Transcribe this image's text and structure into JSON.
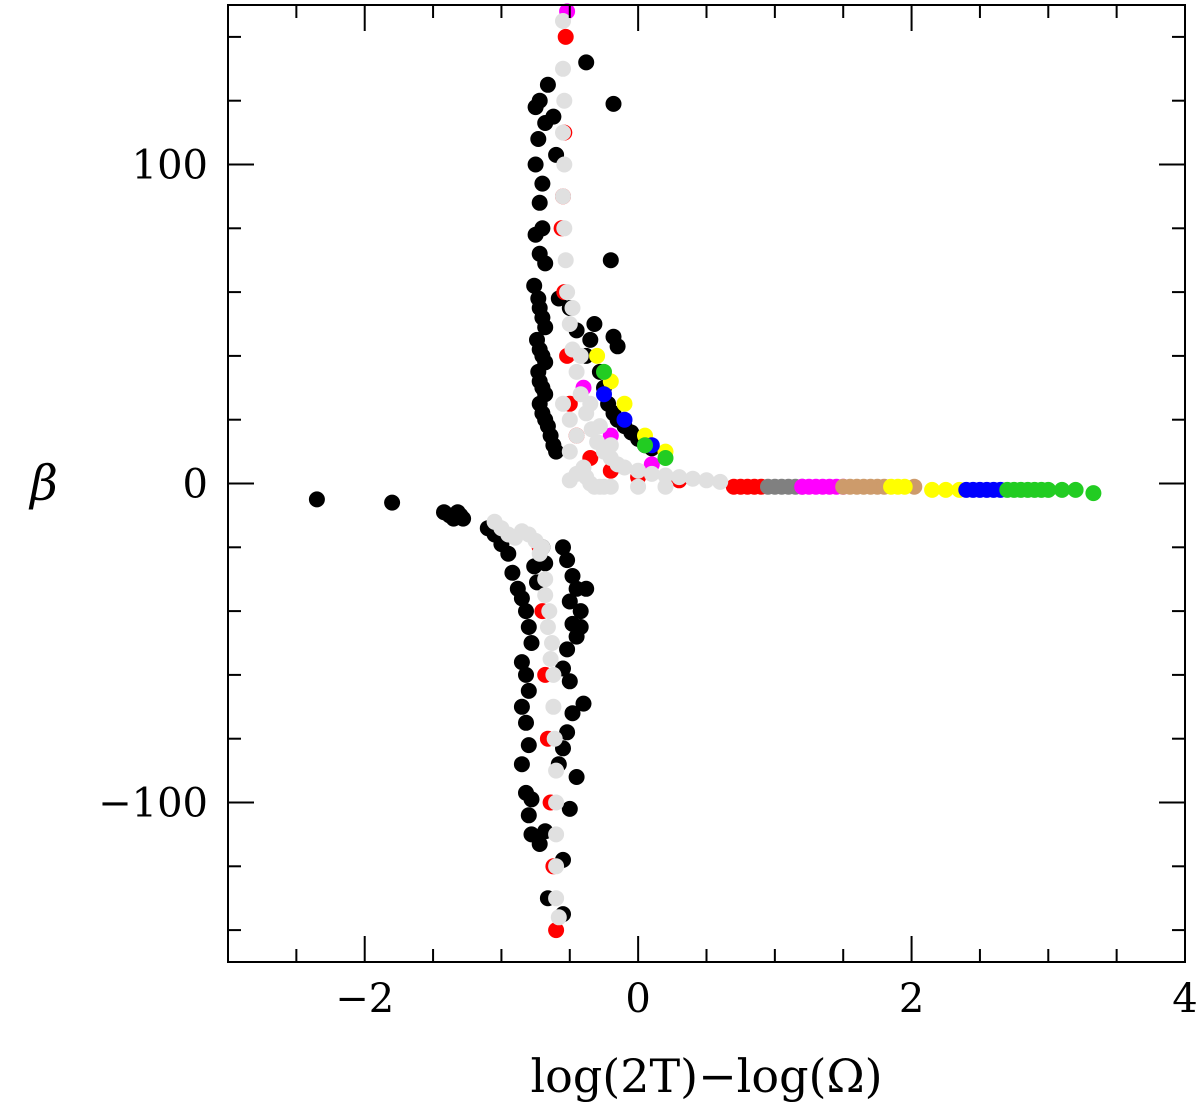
{
  "chart_data": {
    "type": "scatter",
    "title": "",
    "xlabel": "log(2T)−log(Ω)",
    "ylabel": "β",
    "xlim": [
      -3.0,
      4.0
    ],
    "ylim": [
      -150,
      150
    ],
    "xticks": [
      -2,
      0,
      2,
      4
    ],
    "xtick_labels": [
      "−2",
      "0",
      "2",
      "4"
    ],
    "yticks": [
      -100,
      0,
      100
    ],
    "ytick_labels": [
      "−100",
      "0",
      "100"
    ],
    "x_minor_step": 0.5,
    "y_minor_step": 20,
    "series": [
      {
        "name": "black",
        "color": "#000000",
        "points": [
          [
            -2.35,
            -5
          ],
          [
            -1.8,
            -6
          ],
          [
            -1.42,
            -9
          ],
          [
            -1.38,
            -10
          ],
          [
            -1.35,
            -11
          ],
          [
            -1.32,
            -9
          ],
          [
            -1.3,
            -10
          ],
          [
            -1.28,
            -11
          ],
          [
            -1.1,
            -14
          ],
          [
            -1.05,
            -16
          ],
          [
            -1.0,
            -19
          ],
          [
            -0.95,
            -22
          ],
          [
            -0.92,
            -28
          ],
          [
            -0.88,
            -33
          ],
          [
            -0.85,
            -36
          ],
          [
            -0.82,
            -40
          ],
          [
            -0.8,
            -45
          ],
          [
            -0.78,
            -50
          ],
          [
            -0.85,
            -56
          ],
          [
            -0.82,
            -60
          ],
          [
            -0.8,
            -65
          ],
          [
            -0.85,
            -70
          ],
          [
            -0.82,
            -75
          ],
          [
            -0.8,
            -82
          ],
          [
            -0.85,
            -88
          ],
          [
            -0.82,
            -97
          ],
          [
            -0.78,
            -99
          ],
          [
            -0.8,
            -104
          ],
          [
            -0.78,
            -110
          ],
          [
            -0.72,
            -113
          ],
          [
            -0.68,
            -109
          ],
          [
            -0.66,
            -130
          ],
          [
            -0.55,
            -20
          ],
          [
            -0.52,
            -24
          ],
          [
            -0.48,
            -29
          ],
          [
            -0.45,
            -33
          ],
          [
            -0.5,
            -37
          ],
          [
            -0.42,
            -40
          ],
          [
            -0.48,
            -44
          ],
          [
            -0.45,
            -48
          ],
          [
            -0.52,
            -52
          ],
          [
            -0.55,
            -58
          ],
          [
            -0.5,
            -62
          ],
          [
            -0.48,
            -72
          ],
          [
            -0.52,
            -78
          ],
          [
            -0.55,
            -83
          ],
          [
            -0.58,
            -88
          ],
          [
            -0.4,
            -69
          ],
          [
            -0.45,
            -92
          ],
          [
            -0.5,
            -102
          ],
          [
            -0.55,
            -118
          ],
          [
            -0.55,
            -135
          ],
          [
            -0.38,
            -33
          ],
          [
            -0.42,
            -45
          ],
          [
            -0.76,
            -26
          ],
          [
            -0.74,
            -31
          ],
          [
            -0.7,
            -20
          ],
          [
            -0.68,
            -25
          ],
          [
            -0.72,
            120
          ],
          [
            -0.75,
            118
          ],
          [
            -0.68,
            113
          ],
          [
            -0.73,
            108
          ],
          [
            -0.75,
            100
          ],
          [
            -0.7,
            94
          ],
          [
            -0.72,
            88
          ],
          [
            -0.75,
            78
          ],
          [
            -0.7,
            80
          ],
          [
            -0.72,
            72
          ],
          [
            -0.68,
            69
          ],
          [
            -0.76,
            62
          ],
          [
            -0.73,
            58
          ],
          [
            -0.72,
            55
          ],
          [
            -0.7,
            52
          ],
          [
            -0.68,
            49
          ],
          [
            -0.74,
            45
          ],
          [
            -0.72,
            42
          ],
          [
            -0.7,
            40
          ],
          [
            -0.68,
            38
          ],
          [
            -0.73,
            35
          ],
          [
            -0.72,
            32
          ],
          [
            -0.7,
            30
          ],
          [
            -0.68,
            28
          ],
          [
            -0.72,
            25
          ],
          [
            -0.7,
            22
          ],
          [
            -0.68,
            20
          ],
          [
            -0.66,
            18
          ],
          [
            -0.64,
            15
          ],
          [
            -0.62,
            12
          ],
          [
            -0.6,
            10
          ],
          [
            -0.66,
            125
          ],
          [
            -0.62,
            115
          ],
          [
            -0.6,
            103
          ],
          [
            -0.38,
            132
          ],
          [
            -0.18,
            119
          ],
          [
            -0.2,
            70
          ],
          [
            -0.15,
            43
          ],
          [
            -0.18,
            46
          ],
          [
            -0.32,
            50
          ],
          [
            -0.28,
            35
          ],
          [
            -0.25,
            30
          ],
          [
            -0.22,
            25
          ],
          [
            -0.18,
            22
          ],
          [
            -0.15,
            20
          ],
          [
            -0.1,
            18
          ],
          [
            -0.05,
            16
          ],
          [
            0.0,
            14
          ],
          [
            0.05,
            12
          ],
          [
            0.1,
            11
          ],
          [
            -0.45,
            48
          ],
          [
            -0.5,
            55
          ],
          [
            -0.58,
            58
          ],
          [
            -0.35,
            45
          ],
          [
            -0.38,
            40
          ]
        ]
      },
      {
        "name": "red",
        "color": "#ff0000",
        "points": [
          [
            -0.6,
            -140
          ],
          [
            -0.62,
            -120
          ],
          [
            -0.64,
            -100
          ],
          [
            -0.66,
            -80
          ],
          [
            -0.68,
            -60
          ],
          [
            -0.7,
            -40
          ],
          [
            -0.72,
            -20
          ],
          [
            -0.53,
            140
          ],
          [
            -0.54,
            110
          ],
          [
            -0.55,
            90
          ],
          [
            -0.56,
            80
          ],
          [
            -0.54,
            60
          ],
          [
            -0.52,
            40
          ],
          [
            -0.5,
            25
          ],
          [
            -0.45,
            15
          ],
          [
            -0.35,
            8
          ],
          [
            -0.2,
            4
          ],
          [
            0.0,
            2
          ],
          [
            0.3,
            1
          ],
          [
            0.7,
            -1
          ],
          [
            0.75,
            -1
          ],
          [
            0.8,
            -1
          ],
          [
            0.85,
            -1
          ],
          [
            0.9,
            -1
          ]
        ]
      },
      {
        "name": "gray",
        "color": "#808080",
        "points": [
          [
            0.95,
            -1
          ],
          [
            1.0,
            -1
          ],
          [
            1.05,
            -1
          ],
          [
            1.1,
            -1
          ],
          [
            1.15,
            -1
          ],
          [
            1.2,
            -1
          ]
        ]
      },
      {
        "name": "magenta",
        "color": "#ff00ff",
        "points": [
          [
            -0.52,
            148
          ],
          [
            1.2,
            -1
          ],
          [
            1.25,
            -1
          ],
          [
            1.3,
            -1
          ],
          [
            1.35,
            -1
          ],
          [
            1.4,
            -1
          ],
          [
            1.45,
            -1
          ],
          [
            1.5,
            -1
          ],
          [
            -0.4,
            30
          ],
          [
            -0.2,
            15
          ],
          [
            0.1,
            6
          ]
        ]
      },
      {
        "name": "tan",
        "color": "#cd9b6b",
        "points": [
          [
            1.5,
            -1
          ],
          [
            1.55,
            -1
          ],
          [
            1.6,
            -1
          ],
          [
            1.65,
            -1
          ],
          [
            1.7,
            -1
          ],
          [
            1.75,
            -1
          ],
          [
            1.8,
            -1
          ],
          [
            2.02,
            -1
          ]
        ]
      },
      {
        "name": "yellow",
        "color": "#ffff00",
        "points": [
          [
            1.85,
            -1
          ],
          [
            1.9,
            -1
          ],
          [
            1.95,
            -1
          ],
          [
            2.15,
            -2
          ],
          [
            2.25,
            -2
          ],
          [
            2.35,
            -2
          ],
          [
            -0.3,
            40
          ],
          [
            -0.2,
            32
          ],
          [
            -0.1,
            25
          ],
          [
            0.05,
            15
          ],
          [
            0.2,
            10
          ]
        ]
      },
      {
        "name": "blue",
        "color": "#0000ff",
        "points": [
          [
            2.4,
            -2
          ],
          [
            2.45,
            -2
          ],
          [
            2.5,
            -2
          ],
          [
            2.55,
            -2
          ],
          [
            2.6,
            -2
          ],
          [
            2.65,
            -2
          ],
          [
            -0.25,
            28
          ],
          [
            -0.1,
            20
          ],
          [
            0.1,
            12
          ]
        ]
      },
      {
        "name": "green",
        "color": "#22cc22",
        "points": [
          [
            2.7,
            -2
          ],
          [
            2.75,
            -2
          ],
          [
            2.8,
            -2
          ],
          [
            2.85,
            -2
          ],
          [
            2.9,
            -2
          ],
          [
            2.95,
            -2
          ],
          [
            3.0,
            -2
          ],
          [
            3.1,
            -2
          ],
          [
            3.2,
            -2
          ],
          [
            3.33,
            -3
          ],
          [
            0.05,
            12
          ],
          [
            0.2,
            8
          ],
          [
            -0.25,
            35
          ]
        ]
      },
      {
        "name": "light-gray",
        "color": "#e0e0e0",
        "points": [
          [
            -0.55,
            145
          ],
          [
            -0.55,
            130
          ],
          [
            -0.54,
            120
          ],
          [
            -0.55,
            110
          ],
          [
            -0.54,
            100
          ],
          [
            -0.55,
            90
          ],
          [
            -0.54,
            80
          ],
          [
            -0.53,
            70
          ],
          [
            -0.52,
            60
          ],
          [
            -0.5,
            50
          ],
          [
            -0.48,
            42
          ],
          [
            -0.45,
            35
          ],
          [
            -0.42,
            28
          ],
          [
            -0.38,
            22
          ],
          [
            -0.34,
            17
          ],
          [
            -0.3,
            13
          ],
          [
            -0.25,
            10
          ],
          [
            -0.2,
            8
          ],
          [
            -0.15,
            6
          ],
          [
            -0.1,
            5
          ],
          [
            0.0,
            4
          ],
          [
            0.1,
            3
          ],
          [
            0.2,
            2.5
          ],
          [
            0.3,
            2
          ],
          [
            0.4,
            1.5
          ],
          [
            0.5,
            1
          ],
          [
            0.6,
            0.5
          ],
          [
            -0.48,
            55
          ],
          [
            -0.42,
            40
          ],
          [
            -0.35,
            25
          ],
          [
            -0.28,
            18
          ],
          [
            -0.2,
            12
          ],
          [
            -0.38,
            2
          ],
          [
            -0.35,
            0
          ],
          [
            -0.32,
            -1
          ],
          [
            -0.28,
            -1
          ],
          [
            -0.25,
            -1
          ],
          [
            -0.2,
            -1
          ],
          [
            0.0,
            -1
          ],
          [
            0.2,
            -1
          ],
          [
            -0.5,
            1
          ],
          [
            -0.45,
            3
          ],
          [
            -0.4,
            5
          ],
          [
            -0.5,
            10
          ],
          [
            -0.45,
            15
          ],
          [
            -0.5,
            20
          ],
          [
            -0.55,
            25
          ],
          [
            -1.05,
            -12
          ],
          [
            -1.0,
            -14
          ],
          [
            -0.95,
            -16
          ],
          [
            -0.9,
            -17
          ],
          [
            -0.85,
            -15
          ],
          [
            -0.8,
            -16
          ],
          [
            -0.75,
            -18
          ],
          [
            -0.7,
            -20
          ],
          [
            -0.68,
            -30
          ],
          [
            -0.65,
            -40
          ],
          [
            -0.63,
            -50
          ],
          [
            -0.62,
            -60
          ],
          [
            -0.62,
            -70
          ],
          [
            -0.61,
            -80
          ],
          [
            -0.6,
            -90
          ],
          [
            -0.6,
            -100
          ],
          [
            -0.6,
            -110
          ],
          [
            -0.6,
            -120
          ],
          [
            -0.6,
            -130
          ],
          [
            -0.58,
            -136
          ],
          [
            -0.72,
            -22
          ],
          [
            -0.68,
            -35
          ],
          [
            -0.66,
            -45
          ],
          [
            -0.64,
            -55
          ]
        ]
      }
    ]
  }
}
